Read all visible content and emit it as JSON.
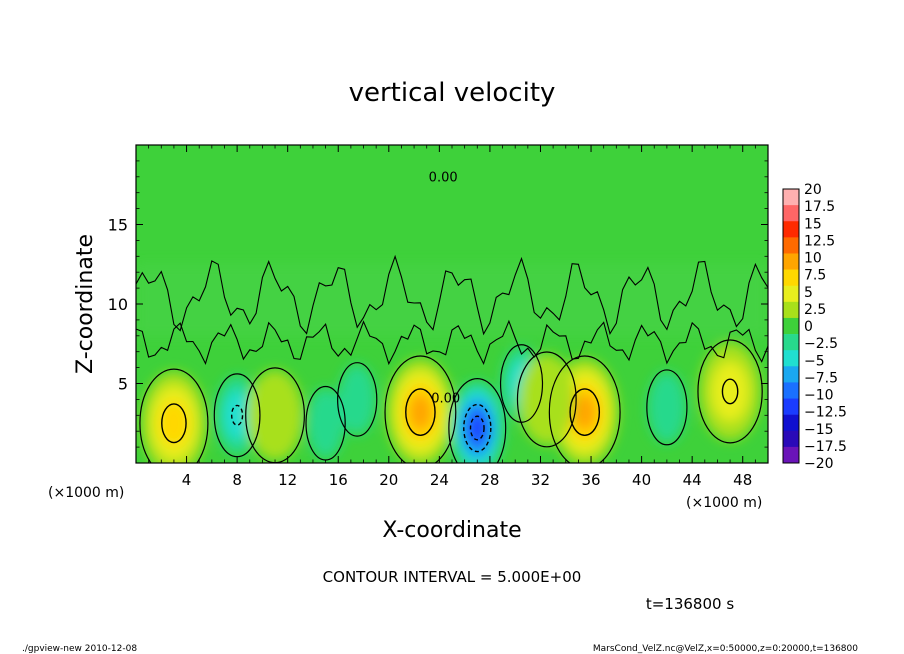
{
  "chart_data": {
    "type": "heatmap",
    "title": "vertical velocity",
    "xlabel": "X-coordinate",
    "ylabel": "Z-coordinate",
    "x_unit_label": "(×1000 m)",
    "x_unit_label_left": "(×1000 m)",
    "xlim": [
      0,
      50
    ],
    "ylim": [
      0,
      20
    ],
    "x_ticks": [
      4,
      8,
      12,
      16,
      20,
      24,
      28,
      32,
      36,
      40,
      44,
      48
    ],
    "x_tick_labels": [
      "4",
      "8",
      "12",
      "16",
      "20",
      "24",
      "28",
      "32",
      "36",
      "40",
      "44",
      "48"
    ],
    "y_ticks": [
      5,
      10,
      15
    ],
    "y_tick_labels": [
      "5",
      "10",
      "15"
    ],
    "contour_interval_text": "CONTOUR INTERVAL = 5.000E+00",
    "contour_interval": 5,
    "time_text": "t=136800 s",
    "contour_labels": [
      {
        "text": "0.00",
        "x": 24.3,
        "z": 17.7
      },
      {
        "text": "0.00",
        "x": 24.5,
        "z": 3.8
      }
    ],
    "colorbar": {
      "labels": [
        "20",
        "17.5",
        "15",
        "12.5",
        "10",
        "7.5",
        "5",
        "2.5",
        "0",
        "−2.5",
        "−5",
        "−7.5",
        "−10",
        "−12.5",
        "−15",
        "−17.5",
        "−20"
      ],
      "levels": [
        20,
        17.5,
        15,
        12.5,
        10,
        7.5,
        5,
        2.5,
        0,
        -2.5,
        -5,
        -7.5,
        -10,
        -12.5,
        -15,
        -17.5,
        -20
      ],
      "colors": [
        "#ffb0b0",
        "#ff6666",
        "#ff2a00",
        "#ff6a00",
        "#ffa500",
        "#ffd800",
        "#e8ee1e",
        "#a8e01a",
        "#3ed13a",
        "#28d98c",
        "#20dfd0",
        "#1aa8f0",
        "#1a70ff",
        "#1a3cff",
        "#1010d0",
        "#2a0ab8",
        "#6a14b8"
      ]
    },
    "features": [
      {
        "type": "updraft",
        "x": 3.0,
        "z": 2.5,
        "peak": 8
      },
      {
        "type": "downdraft",
        "x": 8.0,
        "z": 3.0,
        "peak": -6
      },
      {
        "type": "updraft",
        "x": 11.0,
        "z": 3.0,
        "peak": 3
      },
      {
        "type": "downdraft",
        "x": 15.0,
        "z": 2.5,
        "peak": -2.5
      },
      {
        "type": "downdraft",
        "x": 17.5,
        "z": 4.0,
        "peak": -2.5
      },
      {
        "type": "updraft",
        "x": 22.5,
        "z": 3.2,
        "peak": 9.5
      },
      {
        "type": "downdraft",
        "x": 27.0,
        "z": 2.2,
        "peak": -12
      },
      {
        "type": "downdraft",
        "x": 30.5,
        "z": 5.0,
        "peak": -4
      },
      {
        "type": "updraft",
        "x": 35.5,
        "z": 3.2,
        "peak": 9.5
      },
      {
        "type": "updraft",
        "x": 32.5,
        "z": 4.0,
        "peak": 3
      },
      {
        "type": "downdraft",
        "x": 42.0,
        "z": 3.5,
        "peak": -3
      },
      {
        "type": "updraft",
        "x": 47.0,
        "z": 4.5,
        "peak": 6
      }
    ]
  },
  "footer": {
    "left": "./gpview-new  2010-12-08",
    "right": "MarsCond_VelZ.nc@VelZ,x=0:50000,z=0:20000,t=136800"
  }
}
